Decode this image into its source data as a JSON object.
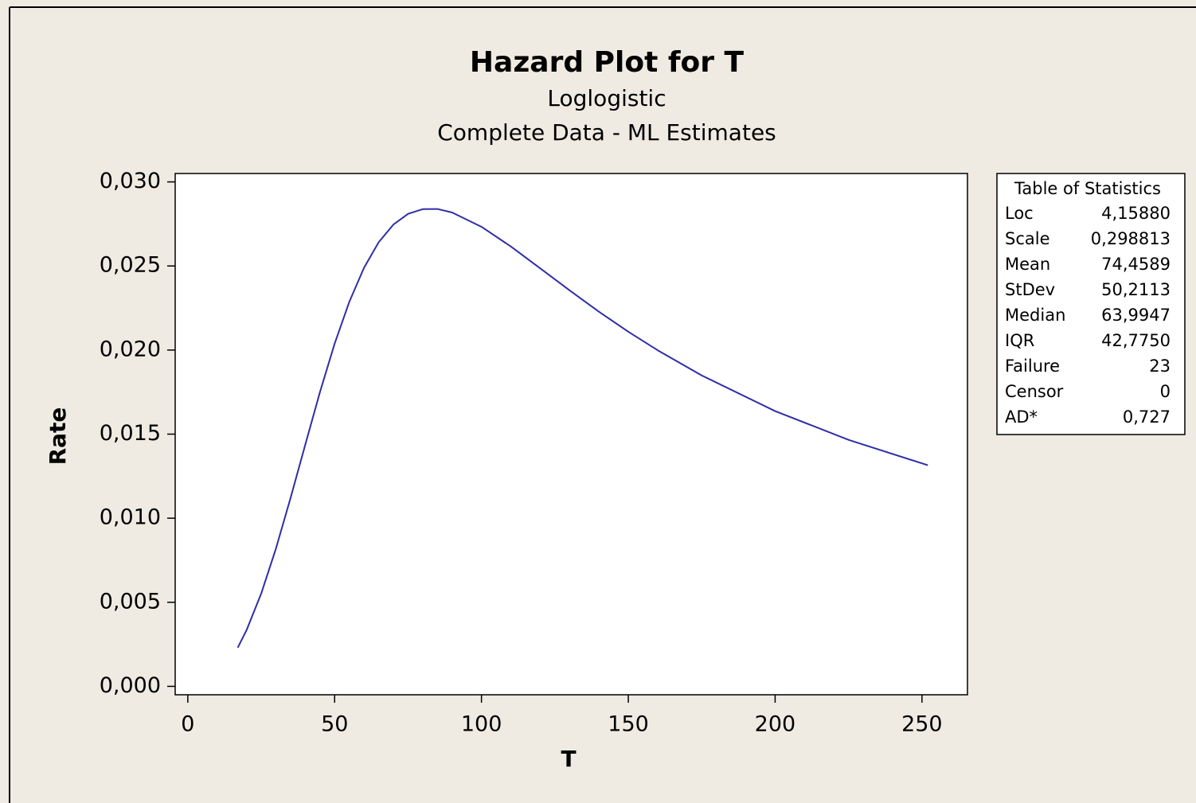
{
  "chart_data": {
    "type": "line",
    "title": "Hazard Plot for T",
    "subtitle": "Loglogistic",
    "subtitle2": "Complete Data - ML Estimates",
    "x_label": "T",
    "y_label": "Rate",
    "x": [
      17,
      20,
      25,
      30,
      35,
      40,
      45,
      50,
      55,
      60,
      65,
      70,
      75,
      80,
      85,
      90,
      100,
      110,
      120,
      130,
      140,
      150,
      160,
      175,
      200,
      225,
      252
    ],
    "series": [
      {
        "color": "#2e2ea8",
        "values": [
          0.0023,
          0.00334,
          0.00552,
          0.00819,
          0.01121,
          0.01437,
          0.0175,
          0.02038,
          0.02287,
          0.02489,
          0.02641,
          0.02746,
          0.0281,
          0.02838,
          0.02839,
          0.02818,
          0.02733,
          0.02616,
          0.02486,
          0.02355,
          0.02228,
          0.02109,
          0.01999,
          0.01849,
          0.01637,
          0.01466,
          0.01315
        ]
      }
    ],
    "xlim": [
      -4.3,
      265.5
    ],
    "ylim": [
      -0.0005,
      0.0305
    ],
    "xticks": [
      0,
      50,
      100,
      150,
      200,
      250
    ],
    "yticks": [
      {
        "value": 0,
        "label": "0,000"
      },
      {
        "value": 0.005,
        "label": "0,005"
      },
      {
        "value": 0.01,
        "label": "0,010"
      },
      {
        "value": 0.015,
        "label": "0,015"
      },
      {
        "value": 0.02,
        "label": "0,020"
      },
      {
        "value": 0.025,
        "label": "0,025"
      },
      {
        "value": 0.03,
        "label": "0,030"
      }
    ],
    "grid": false,
    "stats_table": {
      "title": "Table of Statistics",
      "rows": [
        [
          "Loc",
          "4,15880"
        ],
        [
          "Scale",
          "0,298813"
        ],
        [
          "Mean",
          "74,4589"
        ],
        [
          "StDev",
          "50,2113"
        ],
        [
          "Median",
          "63,9947"
        ],
        [
          "IQR",
          "42,7750"
        ],
        [
          "Failure",
          "23"
        ],
        [
          "Censor",
          "0"
        ],
        [
          "AD*",
          "0,727"
        ]
      ]
    }
  }
}
